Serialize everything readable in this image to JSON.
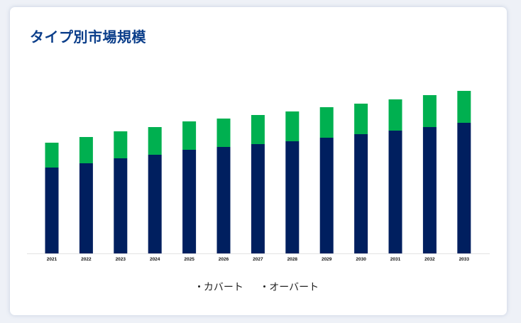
{
  "chart_data": {
    "type": "bar",
    "stacked": true,
    "title": "タイプ別市場規模",
    "xlabel": "",
    "ylabel": "",
    "categories": [
      "2021",
      "2022",
      "2023",
      "2024",
      "2025",
      "2026",
      "2027",
      "2028",
      "2029",
      "2030",
      "2031",
      "2032",
      "2033"
    ],
    "series": [
      {
        "name": "カバート",
        "color": "#001f5f",
        "values": [
          121,
          127,
          134,
          139,
          146,
          150,
          154,
          158,
          163,
          168,
          173,
          178,
          184
        ]
      },
      {
        "name": "オーバート",
        "color": "#00b050",
        "values": [
          35,
          37,
          38,
          39,
          40,
          40,
          41,
          42,
          43,
          43,
          44,
          45,
          45
        ]
      }
    ],
    "ylim": [
      0,
      257
    ],
    "grid": false,
    "legend_position": "bottom"
  }
}
